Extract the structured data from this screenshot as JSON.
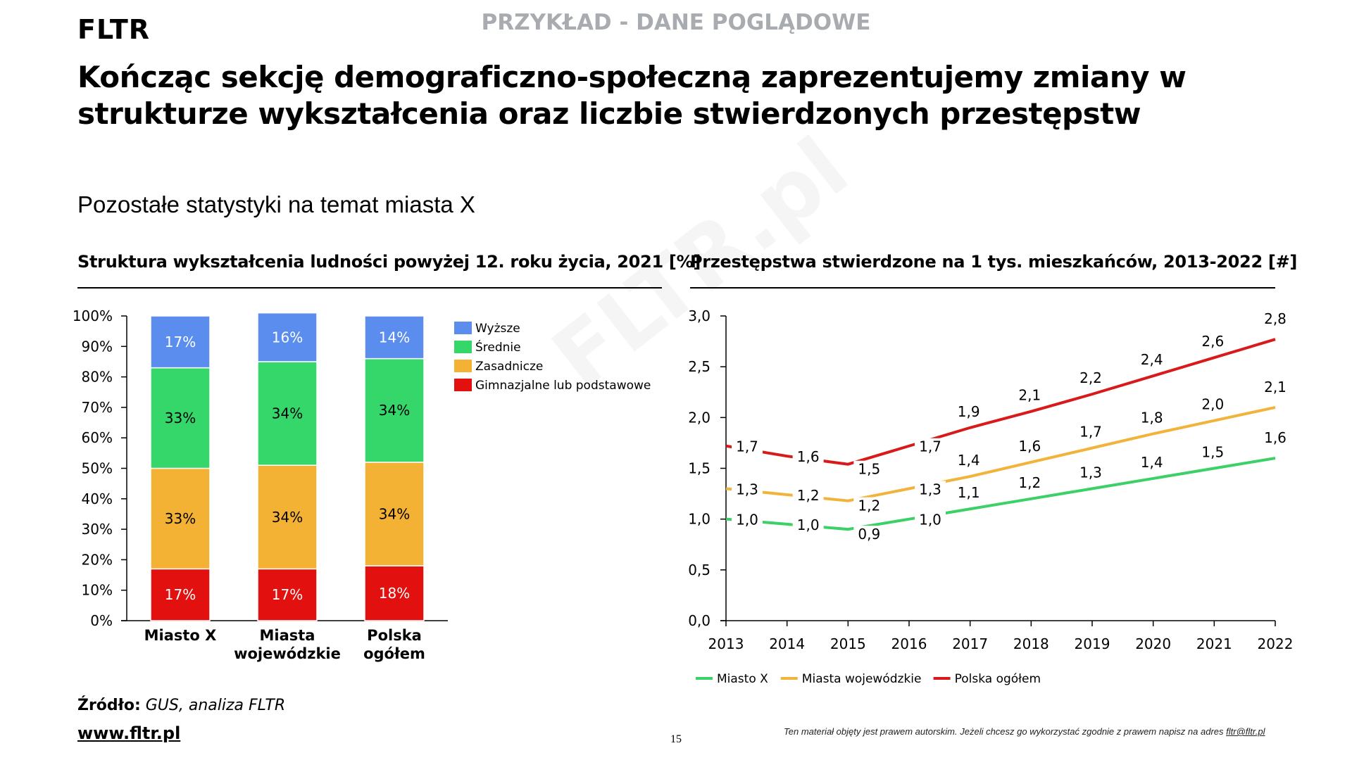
{
  "header": {
    "logo": "FLTR",
    "example_notice": "PRZYKŁAD - DANE POGLĄDOWE",
    "title": "Kończąc sekcję demograficzno-społeczną zaprezentujemy zmiany w strukturze wykształcenia oraz liczbie stwierdzonych przestępstw",
    "subtitle": "Pozostałe statystyki na temat miasta X"
  },
  "watermark": "FLTR.pl",
  "colors": {
    "wyzsze": "#5b8def",
    "srednie": "#35d66a",
    "zasadnicze": "#f3b233",
    "gimnazjalne": "#e31010",
    "line_miasto_x": "#3bd166",
    "line_wojewodzkie": "#f2b33a",
    "line_polska": "#d91a1a"
  },
  "chart_data": [
    {
      "type": "bar",
      "stacked": true,
      "title": "Struktura wykształcenia ludności powyżej 12. roku życia, 2021 [%]",
      "categories": [
        "Miasto X",
        "Miasta wojewódzkie",
        "Polska ogółem"
      ],
      "category_lines": [
        [
          "Miasto X"
        ],
        [
          "Miasta",
          "wojewódzkie"
        ],
        [
          "Polska",
          "ogółem"
        ]
      ],
      "series": [
        {
          "name": "Gimnazjalne lub podstawowe",
          "color_key": "gimnazjalne",
          "values": [
            17,
            17,
            18
          ],
          "labels": [
            "17%",
            "17%",
            "18%"
          ],
          "label_color": "#ffffff"
        },
        {
          "name": "Zasadnicze",
          "color_key": "zasadnicze",
          "values": [
            33,
            34,
            34
          ],
          "labels": [
            "33%",
            "34%",
            "34%"
          ],
          "label_color": "#000000"
        },
        {
          "name": "Średnie",
          "color_key": "srednie",
          "values": [
            33,
            34,
            34
          ],
          "labels": [
            "33%",
            "34%",
            "34%"
          ],
          "label_color": "#000000"
        },
        {
          "name": "Wyższe",
          "color_key": "wyzsze",
          "values": [
            17,
            16,
            14
          ],
          "labels": [
            "17%",
            "16%",
            "14%"
          ],
          "label_color": "#ffffff"
        }
      ],
      "legend_order": [
        "Wyższe",
        "Średnie",
        "Zasadnicze",
        "Gimnazjalne lub podstawowe"
      ],
      "legend_placement": "right",
      "ylim": [
        0,
        100
      ],
      "yticks": [
        "0%",
        "10%",
        "20%",
        "30%",
        "40%",
        "50%",
        "60%",
        "70%",
        "80%",
        "90%",
        "100%"
      ],
      "xlabel": "",
      "ylabel": ""
    },
    {
      "type": "line",
      "title": "Przestępstwa stwierdzone na 1 tys. mieszkańców, 2013-2022  [#]",
      "x": [
        "2013",
        "2014",
        "2015",
        "2016",
        "2017",
        "2018",
        "2019",
        "2020",
        "2021",
        "2022"
      ],
      "series": [
        {
          "name": "Miasto X",
          "color_key": "line_miasto_x",
          "values": [
            1.0,
            0.95,
            0.9,
            1.0,
            1.1,
            1.2,
            1.3,
            1.4,
            1.5,
            1.6
          ],
          "labels": [
            "1,0",
            "1,0",
            "0,9",
            "1,0",
            "1,1",
            "1,2",
            "1,3",
            "1,4",
            "1,5",
            "1,6"
          ]
        },
        {
          "name": "Miasta wojewódzkie",
          "color_key": "line_wojewodzkie",
          "values": [
            1.3,
            1.24,
            1.18,
            1.3,
            1.42,
            1.56,
            1.7,
            1.84,
            1.97,
            2.1
          ],
          "labels": [
            "1,3",
            "1,2",
            "1,2",
            "1,3",
            "1,4",
            "1,6",
            "1,7",
            "1,8",
            "2,0",
            "2,1"
          ]
        },
        {
          "name": "Polska ogółem",
          "color_key": "line_polska",
          "values": [
            1.72,
            1.62,
            1.54,
            1.72,
            1.9,
            2.06,
            2.23,
            2.41,
            2.59,
            2.77
          ],
          "labels": [
            "1,7",
            "1,6",
            "1,5",
            "1,7",
            "1,9",
            "2,1",
            "2,2",
            "2,4",
            "2,6",
            "2,8"
          ]
        }
      ],
      "ylim": [
        0,
        3
      ],
      "yticks": [
        "0,0",
        "0,5",
        "1,0",
        "1,5",
        "2,0",
        "2,5",
        "3,0"
      ],
      "legend_placement": "bottom-left",
      "grid": false,
      "xlabel": "",
      "ylabel": ""
    }
  ],
  "footer": {
    "source_label": "Źródło:",
    "source_value": "GUS, analiza FLTR",
    "website": "www.fltr.pl",
    "page_number": "15",
    "copyright_text": "Ten materiał objęty jest prawem  autorskim. Jeżeli chcesz go wykorzystać zgodnie z prawem  napisz na adres ",
    "copyright_email": "fltr@fltr.pl"
  }
}
